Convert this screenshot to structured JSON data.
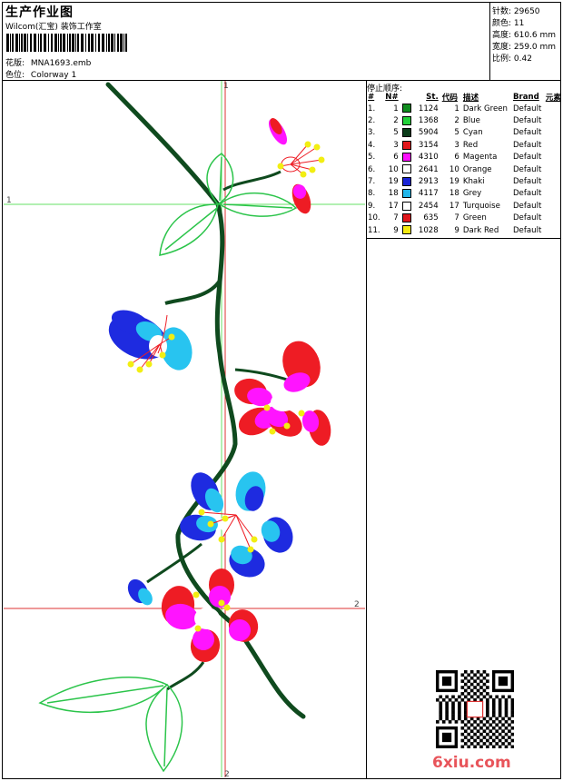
{
  "header": {
    "title": "生产作业图",
    "company": "Wilcom(汇宝) 装饰工作室"
  },
  "design_info": {
    "pattern_label": "花版:",
    "pattern_value": "MNA1693.emb",
    "colorway_label": "色位:",
    "colorway_value": "Colorway 1"
  },
  "stats": {
    "stitches": "针数: 29650",
    "colors": "颜色: 11",
    "height": "高度: 610.6 mm",
    "width": "宽度: 259.0 mm",
    "scale": "比例: 0.42"
  },
  "stop_sequence": {
    "title": "停止顺序:",
    "headers": [
      "#",
      "N#",
      "",
      "St.",
      "代码",
      "描述",
      "Brand",
      "元素"
    ],
    "rows": [
      {
        "idx": "1.",
        "n": "1",
        "color": "#0f8c1e",
        "st": "1124",
        "code": "1",
        "desc": "Dark Green",
        "brand": "Default"
      },
      {
        "idx": "2.",
        "n": "2",
        "color": "#22d23a",
        "st": "1368",
        "code": "2",
        "desc": "Blue",
        "brand": "Default"
      },
      {
        "idx": "3.",
        "n": "5",
        "color": "#0b3d1a",
        "st": "5904",
        "code": "5",
        "desc": "Cyan",
        "brand": "Default"
      },
      {
        "idx": "4.",
        "n": "3",
        "color": "#e0161b",
        "st": "3154",
        "code": "3",
        "desc": "Red",
        "brand": "Default"
      },
      {
        "idx": "5.",
        "n": "6",
        "color": "#ff10ff",
        "st": "4310",
        "code": "6",
        "desc": "Magenta",
        "brand": "Default"
      },
      {
        "idx": "6.",
        "n": "10",
        "color": "#ffffff",
        "st": "2641",
        "code": "10",
        "desc": "Orange",
        "brand": "Default"
      },
      {
        "idx": "7.",
        "n": "19",
        "color": "#1a24d6",
        "st": "2913",
        "code": "19",
        "desc": "Khaki",
        "brand": "Default"
      },
      {
        "idx": "8.",
        "n": "18",
        "color": "#22b6ea",
        "st": "4117",
        "code": "18",
        "desc": "Grey",
        "brand": "Default"
      },
      {
        "idx": "9.",
        "n": "17",
        "color": "#ffffff",
        "st": "2454",
        "code": "17",
        "desc": "Turquoise",
        "brand": "Default"
      },
      {
        "idx": "10.",
        "n": "7",
        "color": "#e0161b",
        "st": "635",
        "code": "7",
        "desc": "Green",
        "brand": "Default"
      },
      {
        "idx": "11.",
        "n": "9",
        "color": "#f4ea10",
        "st": "1028",
        "code": "9",
        "desc": "Dark Red",
        "brand": "Default"
      }
    ]
  },
  "canvas": {
    "guide_top": "1",
    "guide_left": "1",
    "guide_right": "2",
    "guide_bottom": "2"
  },
  "colors": {
    "dark_green": "#0f4a1e",
    "leaf_green": "#2bc44a",
    "red": "#ee1c24",
    "magenta": "#ff14ff",
    "blue": "#1e2be0",
    "cyan": "#28c4f0",
    "yellow": "#f2ee12",
    "guide_green": "#66e066",
    "guide_red": "#dd3333"
  },
  "watermark": "6xiu.com"
}
